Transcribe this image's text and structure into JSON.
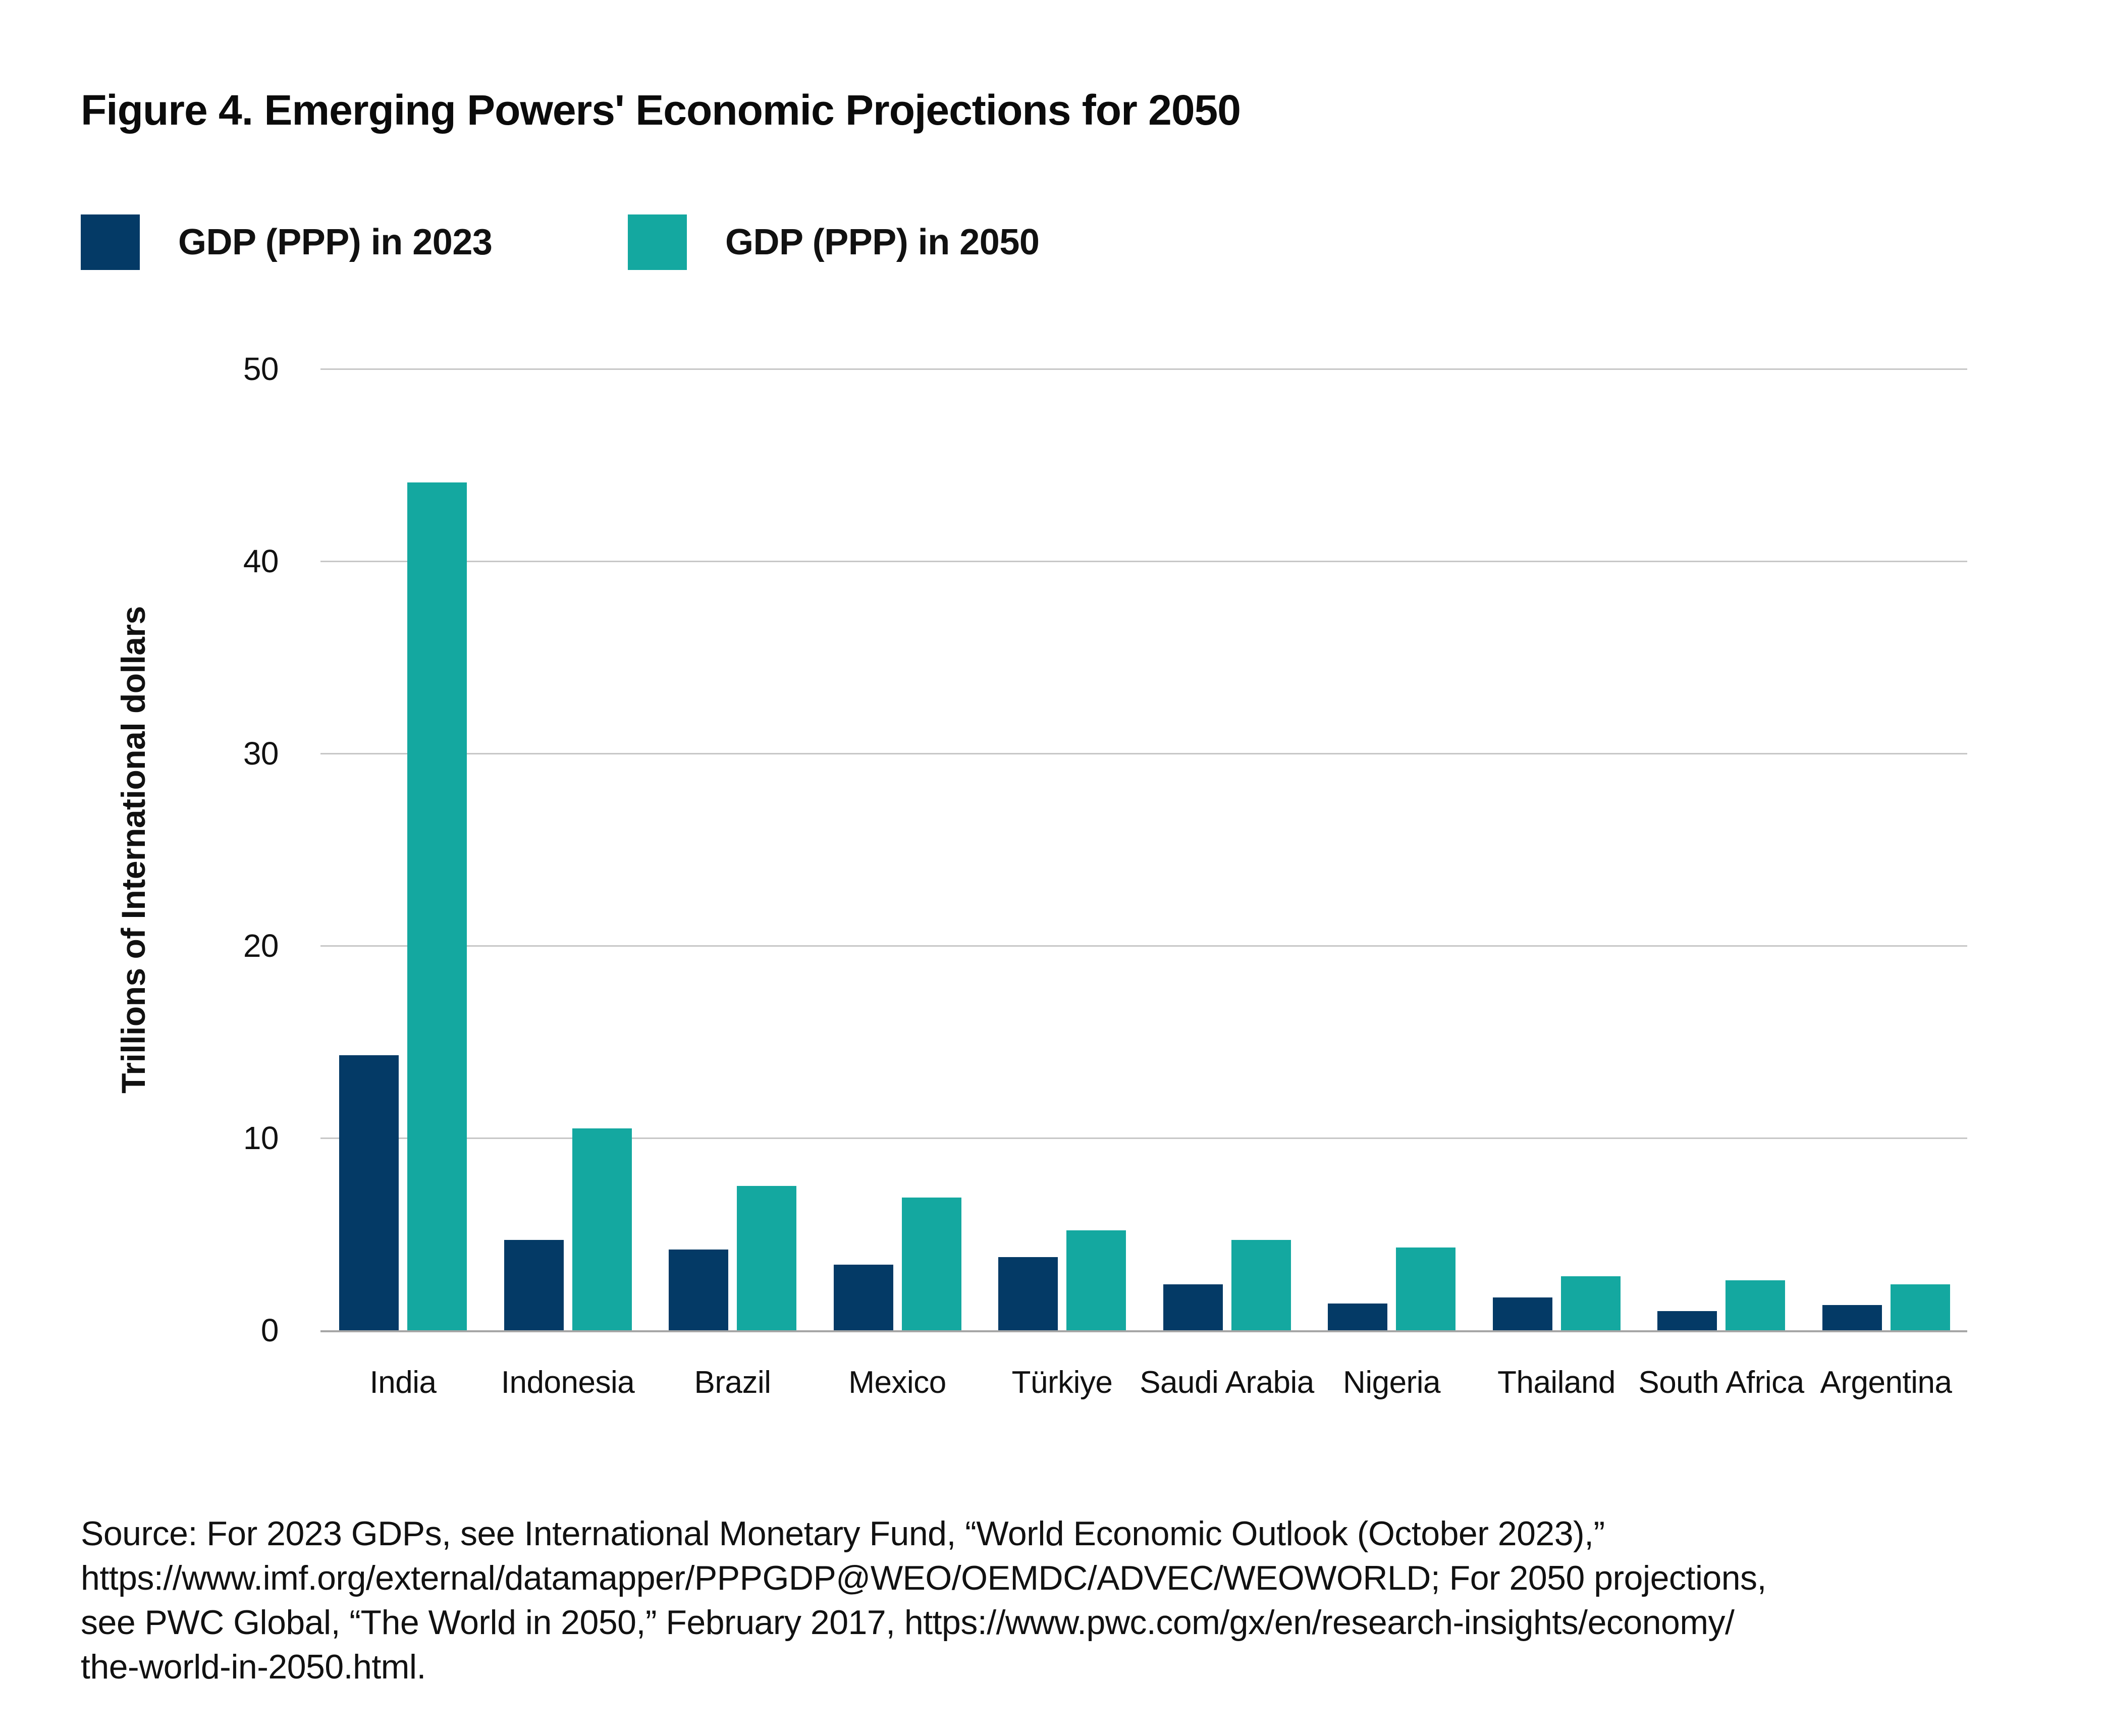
{
  "figure": {
    "title": "Figure 4. Emerging Powers' Economic Projections for 2050"
  },
  "legend": {
    "items": [
      {
        "label": "GDP (PPP) in 2023",
        "color": "#043a66"
      },
      {
        "label": "GDP (PPP) in 2050",
        "color": "#14a8a0"
      }
    ]
  },
  "chart_data": {
    "type": "bar",
    "title": "Figure 4. Emerging Powers' Economic Projections for 2050",
    "categories": [
      "India",
      "Indonesia",
      "Brazil",
      "Mexico",
      "Türkiye",
      "Saudi Arabia",
      "Nigeria",
      "Thailand",
      "South Africa",
      "Argentina"
    ],
    "series": [
      {
        "name": "GDP (PPP) in 2023",
        "color": "#043a66",
        "values": [
          14.3,
          4.7,
          4.2,
          3.4,
          3.8,
          2.4,
          1.4,
          1.7,
          1.0,
          1.3
        ]
      },
      {
        "name": "GDP (PPP) in 2050",
        "color": "#14a8a0",
        "values": [
          44.1,
          10.5,
          7.5,
          6.9,
          5.2,
          4.7,
          4.3,
          2.8,
          2.6,
          2.4
        ]
      }
    ],
    "xlabel": "",
    "ylabel": "Trillions of International dollars",
    "yticks": [
      0,
      10,
      20,
      30,
      40,
      50
    ],
    "ylim": [
      0,
      50
    ],
    "grid": true,
    "legend_position": "top-left",
    "gridline_color": "#c7c7c7",
    "baseline_color": "#a6a6a6",
    "background_color": "#ffffff",
    "text_color": "#111111"
  },
  "source": {
    "lines": [
      "Source: For 2023 GDPs, see International Monetary Fund, “World Economic Outlook (October 2023),”",
      "https://www.imf.org/external/datamapper/PPPGDP@WEO/OEMDC/ADVEC/WEOWORLD; For 2050 projections,",
      "see PWC Global, “The World in 2050,” February 2017, https://www.pwc.com/gx/en/research-insights/economy/",
      "the-world-in-2050.html."
    ]
  }
}
